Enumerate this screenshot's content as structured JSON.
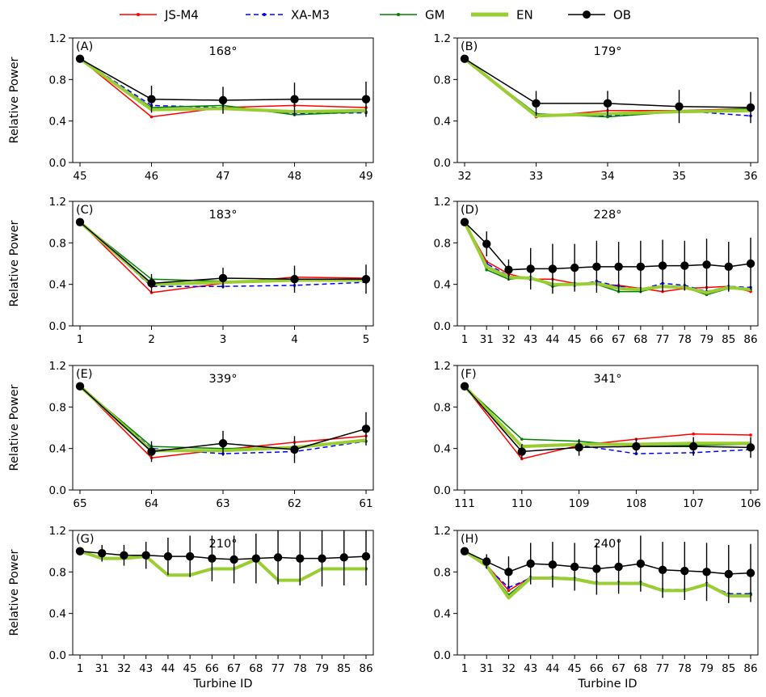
{
  "legend": [
    {
      "name": "JS-M4",
      "color": "#ff0000",
      "dash": "",
      "marker": "dot"
    },
    {
      "name": "XA-M3",
      "color": "#0000ff",
      "dash": "6,4",
      "marker": "dot"
    },
    {
      "name": "GM",
      "color": "#008000",
      "dash": "",
      "marker": "dot"
    },
    {
      "name": "EN",
      "color": "#9acd32",
      "dash": "",
      "marker": "none",
      "thick": true
    },
    {
      "name": "OB",
      "color": "#000000",
      "dash": "",
      "marker": "big"
    }
  ],
  "chart_data": [
    {
      "panel": "(A)",
      "angle": "168°",
      "type": "line",
      "ylabel": "Relative Power",
      "xlabel": "",
      "ylim": [
        0,
        1.2
      ],
      "yticks": [
        "0.0",
        "0.4",
        "0.8",
        "1.2"
      ],
      "categories": [
        "45",
        "46",
        "47",
        "48",
        "49"
      ],
      "series": [
        {
          "name": "JS-M4",
          "values": [
            1.0,
            0.44,
            0.53,
            0.55,
            0.53
          ]
        },
        {
          "name": "XA-M3",
          "values": [
            1.0,
            0.55,
            0.53,
            0.47,
            0.48
          ]
        },
        {
          "name": "GM",
          "values": [
            1.0,
            0.53,
            0.55,
            0.46,
            0.49
          ]
        },
        {
          "name": "EN",
          "values": [
            1.0,
            0.51,
            0.52,
            0.49,
            0.5
          ]
        },
        {
          "name": "OB",
          "values": [
            1.0,
            0.61,
            0.6,
            0.61,
            0.61
          ],
          "err": [
            0,
            0.13,
            0.13,
            0.16,
            0.17
          ]
        }
      ]
    },
    {
      "panel": "(B)",
      "angle": "179°",
      "type": "line",
      "ylabel": "",
      "xlabel": "",
      "ylim": [
        0,
        1.2
      ],
      "yticks": [
        "0.0",
        "0.4",
        "0.8",
        "1.2"
      ],
      "categories": [
        "32",
        "33",
        "34",
        "35",
        "36"
      ],
      "series": [
        {
          "name": "JS-M4",
          "values": [
            1.0,
            0.44,
            0.5,
            0.5,
            0.52
          ]
        },
        {
          "name": "XA-M3",
          "values": [
            1.0,
            0.46,
            0.45,
            0.5,
            0.45
          ]
        },
        {
          "name": "GM",
          "values": [
            1.0,
            0.47,
            0.44,
            0.49,
            0.52
          ]
        },
        {
          "name": "EN",
          "values": [
            1.0,
            0.45,
            0.47,
            0.49,
            0.5
          ]
        },
        {
          "name": "OB",
          "values": [
            1.0,
            0.57,
            0.57,
            0.54,
            0.53
          ],
          "err": [
            0,
            0.12,
            0.12,
            0.16,
            0.15
          ]
        }
      ]
    },
    {
      "panel": "(C)",
      "angle": "183°",
      "type": "line",
      "ylabel": "Relative Power",
      "xlabel": "",
      "ylim": [
        0,
        1.2
      ],
      "yticks": [
        "0.0",
        "0.4",
        "0.8",
        "1.2"
      ],
      "categories": [
        "1",
        "2",
        "3",
        "4",
        "5"
      ],
      "series": [
        {
          "name": "JS-M4",
          "values": [
            1.0,
            0.32,
            0.41,
            0.47,
            0.46
          ]
        },
        {
          "name": "XA-M3",
          "values": [
            1.0,
            0.38,
            0.38,
            0.39,
            0.42
          ]
        },
        {
          "name": "GM",
          "values": [
            1.0,
            0.45,
            0.43,
            0.43,
            0.44
          ]
        },
        {
          "name": "EN",
          "values": [
            1.0,
            0.4,
            0.42,
            0.44,
            0.44
          ]
        },
        {
          "name": "OB",
          "values": [
            1.0,
            0.41,
            0.46,
            0.45,
            0.45
          ],
          "err": [
            0,
            0.09,
            0.1,
            0.13,
            0.14
          ]
        }
      ]
    },
    {
      "panel": "(D)",
      "angle": "228°",
      "type": "line",
      "ylabel": "",
      "xlabel": "",
      "ylim": [
        0,
        1.2
      ],
      "yticks": [
        "0.0",
        "0.4",
        "0.8",
        "1.2"
      ],
      "categories": [
        "1",
        "31",
        "32",
        "43",
        "44",
        "45",
        "66",
        "67",
        "68",
        "77",
        "78",
        "79",
        "85",
        "86"
      ],
      "series": [
        {
          "name": "JS-M4",
          "values": [
            1.0,
            0.62,
            0.5,
            0.45,
            0.45,
            0.41,
            0.4,
            0.39,
            0.36,
            0.33,
            0.36,
            0.37,
            0.38,
            0.33
          ]
        },
        {
          "name": "XA-M3",
          "values": [
            1.0,
            0.6,
            0.48,
            0.45,
            0.4,
            0.39,
            0.43,
            0.38,
            0.35,
            0.41,
            0.39,
            0.33,
            0.38,
            0.37
          ]
        },
        {
          "name": "GM",
          "values": [
            1.0,
            0.54,
            0.45,
            0.47,
            0.38,
            0.41,
            0.4,
            0.33,
            0.33,
            0.38,
            0.37,
            0.3,
            0.36,
            0.35
          ]
        },
        {
          "name": "EN",
          "values": [
            1.0,
            0.57,
            0.47,
            0.46,
            0.4,
            0.4,
            0.41,
            0.36,
            0.35,
            0.38,
            0.37,
            0.32,
            0.37,
            0.35
          ]
        },
        {
          "name": "OB",
          "values": [
            1.0,
            0.79,
            0.54,
            0.55,
            0.55,
            0.56,
            0.57,
            0.57,
            0.57,
            0.58,
            0.58,
            0.59,
            0.57,
            0.6
          ],
          "err": [
            0,
            0.12,
            0.1,
            0.2,
            0.24,
            0.23,
            0.25,
            0.24,
            0.25,
            0.25,
            0.24,
            0.25,
            0.24,
            0.25
          ]
        }
      ]
    },
    {
      "panel": "(E)",
      "angle": "339°",
      "type": "line",
      "ylabel": "Relative Power",
      "xlabel": "",
      "ylim": [
        0,
        1.2
      ],
      "yticks": [
        "0.0",
        "0.4",
        "0.8",
        "1.2"
      ],
      "categories": [
        "65",
        "64",
        "63",
        "62",
        "61"
      ],
      "series": [
        {
          "name": "JS-M4",
          "values": [
            1.0,
            0.31,
            0.39,
            0.46,
            0.52
          ]
        },
        {
          "name": "XA-M3",
          "values": [
            1.0,
            0.4,
            0.35,
            0.37,
            0.47
          ]
        },
        {
          "name": "GM",
          "values": [
            1.0,
            0.42,
            0.4,
            0.41,
            0.47
          ]
        },
        {
          "name": "EN",
          "values": [
            1.0,
            0.38,
            0.38,
            0.41,
            0.48
          ]
        },
        {
          "name": "OB",
          "values": [
            1.0,
            0.37,
            0.45,
            0.39,
            0.59
          ],
          "err": [
            0,
            0.1,
            0.12,
            0.13,
            0.16
          ]
        }
      ]
    },
    {
      "panel": "(F)",
      "angle": "341°",
      "type": "line",
      "ylabel": "",
      "xlabel": "",
      "ylim": [
        0,
        1.2
      ],
      "yticks": [
        "0.0",
        "0.4",
        "0.8",
        "1.2"
      ],
      "categories": [
        "111",
        "110",
        "109",
        "108",
        "107",
        "106"
      ],
      "series": [
        {
          "name": "JS-M4",
          "values": [
            1.0,
            0.3,
            0.43,
            0.49,
            0.54,
            0.53
          ]
        },
        {
          "name": "XA-M3",
          "values": [
            1.0,
            0.43,
            0.43,
            0.35,
            0.36,
            0.39
          ]
        },
        {
          "name": "GM",
          "values": [
            1.0,
            0.49,
            0.47,
            0.42,
            0.43,
            0.44
          ]
        },
        {
          "name": "EN",
          "values": [
            1.0,
            0.42,
            0.44,
            0.44,
            0.45,
            0.45
          ]
        },
        {
          "name": "OB",
          "values": [
            1.0,
            0.37,
            0.41,
            0.42,
            0.42,
            0.41
          ],
          "err": [
            0,
            0.07,
            0.08,
            0.08,
            0.09,
            0.1
          ]
        }
      ]
    },
    {
      "panel": "(G)",
      "angle": "210°",
      "type": "line",
      "ylabel": "Relative Power",
      "xlabel": "Turbine ID",
      "ylim": [
        0,
        1.2
      ],
      "yticks": [
        "0.0",
        "0.4",
        "0.8",
        "1.2"
      ],
      "categories": [
        "1",
        "31",
        "32",
        "43",
        "44",
        "45",
        "66",
        "67",
        "68",
        "77",
        "78",
        "79",
        "85",
        "86"
      ],
      "series": [
        {
          "name": "JS-M4",
          "values": [
            1.0,
            0.93,
            0.93,
            0.95,
            0.77,
            0.77,
            0.83,
            0.83,
            0.92,
            0.72,
            0.72,
            0.83,
            0.83,
            0.83
          ]
        },
        {
          "name": "XA-M3",
          "values": [
            1.0,
            0.93,
            0.93,
            0.95,
            0.77,
            0.77,
            0.83,
            0.83,
            0.92,
            0.72,
            0.72,
            0.83,
            0.83,
            0.83
          ]
        },
        {
          "name": "GM",
          "values": [
            1.0,
            0.93,
            0.93,
            0.95,
            0.77,
            0.77,
            0.83,
            0.83,
            0.92,
            0.72,
            0.72,
            0.83,
            0.83,
            0.83
          ]
        },
        {
          "name": "EN",
          "values": [
            1.0,
            0.93,
            0.93,
            0.95,
            0.77,
            0.77,
            0.83,
            0.83,
            0.92,
            0.72,
            0.72,
            0.83,
            0.83,
            0.83
          ]
        },
        {
          "name": "OB",
          "values": [
            1.0,
            0.98,
            0.96,
            0.96,
            0.95,
            0.95,
            0.93,
            0.92,
            0.93,
            0.94,
            0.93,
            0.93,
            0.94,
            0.95
          ],
          "err": [
            0,
            0.08,
            0.1,
            0.13,
            0.18,
            0.2,
            0.22,
            0.23,
            0.24,
            0.26,
            0.26,
            0.27,
            0.27,
            0.28
          ]
        }
      ]
    },
    {
      "panel": "(H)",
      "angle": "240°",
      "type": "line",
      "ylabel": "",
      "xlabel": "Turbine ID",
      "ylim": [
        0,
        1.2
      ],
      "yticks": [
        "0.0",
        "0.4",
        "0.8",
        "1.2"
      ],
      "categories": [
        "1",
        "31",
        "32",
        "43",
        "44",
        "45",
        "66",
        "67",
        "68",
        "77",
        "78",
        "79",
        "85",
        "86"
      ],
      "series": [
        {
          "name": "JS-M4",
          "values": [
            1.0,
            0.87,
            0.62,
            0.75,
            0.74,
            0.73,
            0.69,
            0.69,
            0.69,
            0.62,
            0.62,
            0.68,
            0.58,
            0.58
          ]
        },
        {
          "name": "XA-M3",
          "values": [
            1.0,
            0.85,
            0.65,
            0.74,
            0.74,
            0.73,
            0.7,
            0.7,
            0.7,
            0.63,
            0.63,
            0.68,
            0.59,
            0.59
          ]
        },
        {
          "name": "GM",
          "values": [
            1.0,
            0.86,
            0.58,
            0.75,
            0.75,
            0.74,
            0.7,
            0.7,
            0.7,
            0.62,
            0.62,
            0.69,
            0.58,
            0.58
          ]
        },
        {
          "name": "EN",
          "values": [
            1.0,
            0.86,
            0.55,
            0.74,
            0.74,
            0.73,
            0.69,
            0.69,
            0.69,
            0.62,
            0.62,
            0.68,
            0.57,
            0.57
          ]
        },
        {
          "name": "OB",
          "values": [
            1.0,
            0.9,
            0.8,
            0.88,
            0.87,
            0.85,
            0.83,
            0.85,
            0.88,
            0.82,
            0.81,
            0.8,
            0.78,
            0.79
          ],
          "err": [
            0,
            0.07,
            0.15,
            0.2,
            0.22,
            0.23,
            0.25,
            0.26,
            0.27,
            0.27,
            0.28,
            0.28,
            0.28,
            0.28
          ]
        }
      ]
    }
  ]
}
